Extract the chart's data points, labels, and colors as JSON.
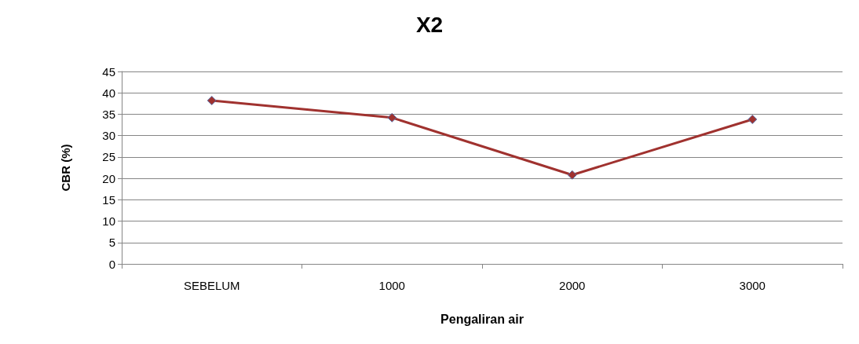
{
  "chart_data": {
    "type": "line",
    "title": "X2",
    "xlabel": "Pengaliran air",
    "ylabel": "CBR (%)",
    "categories": [
      "SEBELUM",
      "1000",
      "2000",
      "3000"
    ],
    "series": [
      {
        "color": "#a0322f",
        "values": [
          38.2,
          34.2,
          20.8,
          33.8
        ]
      }
    ],
    "ylim": [
      0,
      45
    ],
    "yticks": [
      0,
      5,
      10,
      15,
      20,
      25,
      30,
      35,
      40,
      45
    ],
    "grid": "y",
    "marker": "diamond",
    "line_style": "solid"
  }
}
